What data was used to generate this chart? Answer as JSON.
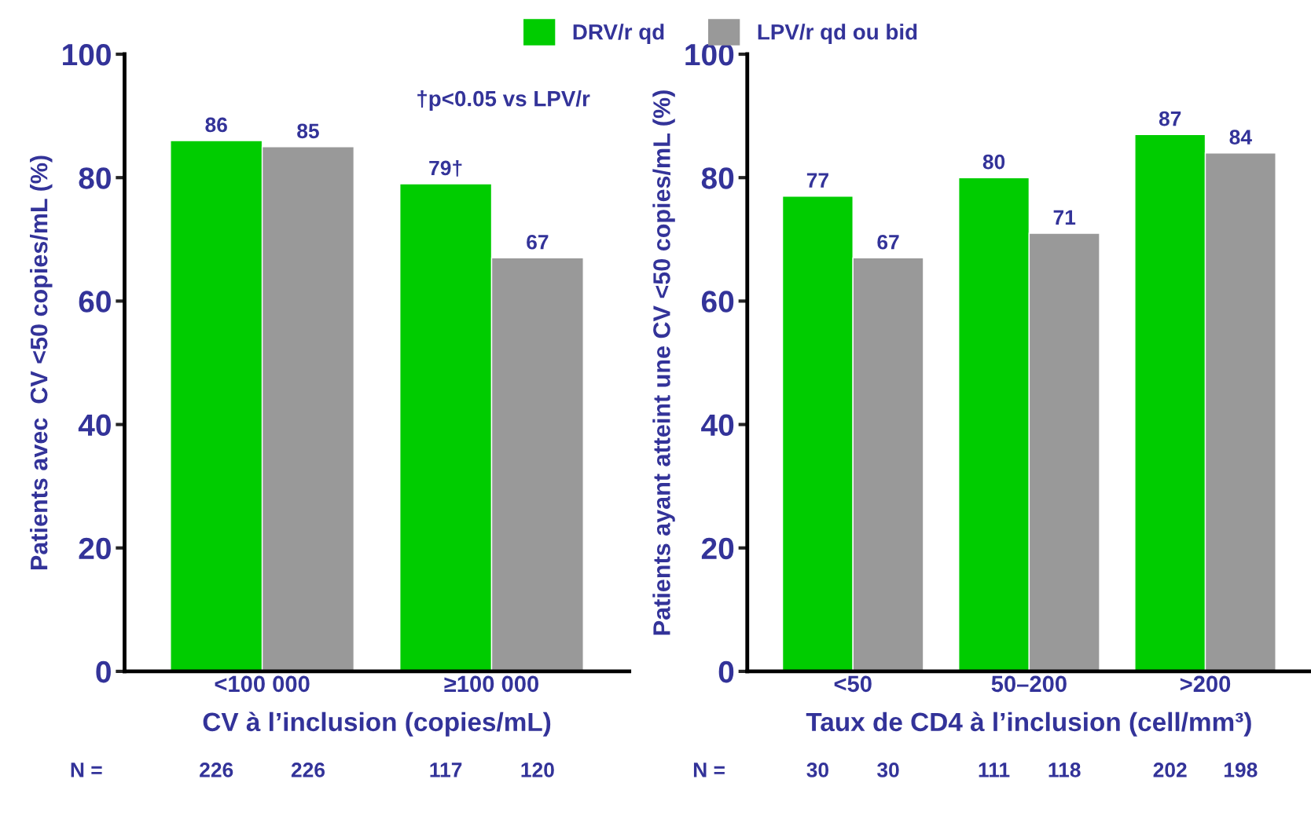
{
  "chart_data": [
    {
      "type": "bar",
      "xlabel": "CV à l’inclusion (copies/mL)",
      "ylabel": "Patients avec  CV <50 copies/mL (%)",
      "categories": [
        "<100 000",
        "≥100 000"
      ],
      "series": [
        {
          "name": "DRV/r qd",
          "color": "#00cc00",
          "values": [
            86,
            79
          ],
          "value_labels": [
            "86",
            "79†"
          ]
        },
        {
          "name": "LPV/r qd ou bid",
          "color": "#999999",
          "values": [
            85,
            67
          ],
          "value_labels": [
            "85",
            "67"
          ]
        }
      ],
      "ylim": [
        0,
        100
      ],
      "yticks": [
        0,
        20,
        40,
        60,
        80,
        100
      ],
      "legend": "top",
      "annotations": [
        "N =",
        "226",
        "226",
        "117",
        "120",
        "†p<0.05 vs LPV/r"
      ]
    },
    {
      "type": "bar",
      "xlabel": "Taux de CD4 à l’inclusion (cell/mm³)",
      "ylabel": "Patients ayant atteint une CV <50 copies/mL (%)",
      "categories": [
        "<50",
        "50–200",
        ">200"
      ],
      "series": [
        {
          "color": "#00cc00",
          "values": [
            77,
            80,
            87
          ]
        },
        {
          "color": "#999999",
          "values": [
            67,
            71,
            84
          ]
        }
      ],
      "data_labels": true,
      "ylim": [
        0,
        100
      ],
      "yticks": [
        0,
        20,
        40,
        60,
        80,
        100
      ],
      "annotations": [
        "N =",
        "30",
        "30",
        "111",
        "118",
        "202",
        "198"
      ]
    }
  ]
}
